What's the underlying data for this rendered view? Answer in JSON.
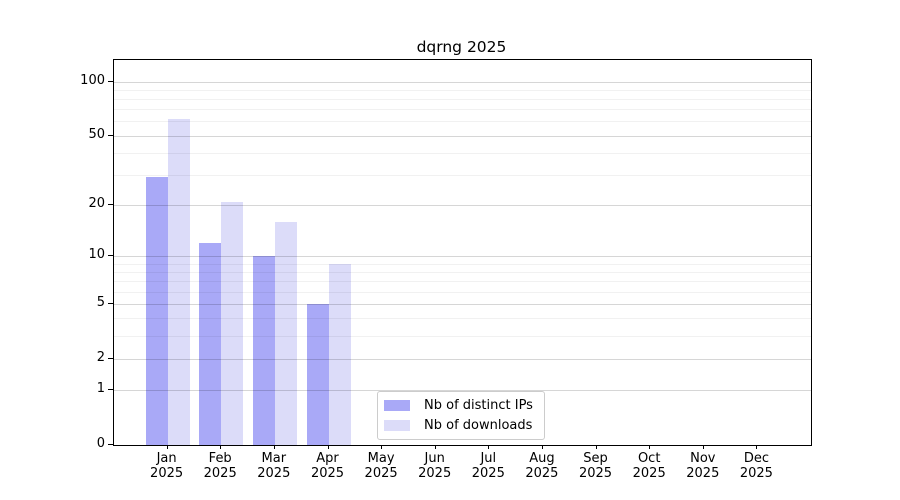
{
  "chart_data": {
    "type": "bar",
    "title": "dqrng 2025",
    "categories": [
      "Jan",
      "Feb",
      "Mar",
      "Apr",
      "May",
      "Jun",
      "Jul",
      "Aug",
      "Sep",
      "Oct",
      "Nov",
      "Dec"
    ],
    "year_label": "2025",
    "series": [
      {
        "name": "Nb of distinct IPs",
        "color": "#a9a9f7",
        "values": [
          29,
          12,
          10,
          5,
          0,
          0,
          0,
          0,
          0,
          0,
          0,
          0
        ]
      },
      {
        "name": "Nb of downloads",
        "color": "#dcdcf9",
        "values": [
          62,
          21,
          16,
          9,
          0,
          0,
          0,
          0,
          0,
          0,
          0,
          0
        ]
      }
    ],
    "xlabel": "",
    "ylabel": "",
    "yscale": "log1p",
    "yticks": [
      0,
      1,
      2,
      5,
      10,
      20,
      50,
      100
    ],
    "minor_yticks": [
      3,
      4,
      6,
      7,
      8,
      9,
      30,
      40,
      60,
      70,
      80,
      90
    ],
    "ylim": [
      0,
      132
    ],
    "grid": true,
    "legend_position": "lower-center-inside"
  }
}
